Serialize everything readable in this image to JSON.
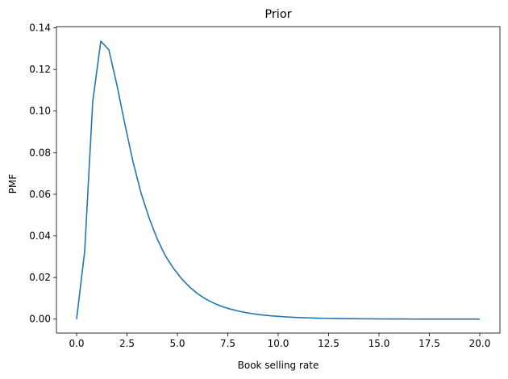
{
  "chart_data": {
    "type": "line",
    "title": "Prior",
    "xlabel": "Book selling rate",
    "ylabel": "PMF",
    "xlim": [
      -1,
      21
    ],
    "ylim": [
      -0.0067,
      0.1406
    ],
    "xticks": [
      0.0,
      2.5,
      5.0,
      7.5,
      10.0,
      12.5,
      15.0,
      17.5,
      20.0
    ],
    "xtick_labels": [
      "0.0",
      "2.5",
      "5.0",
      "7.5",
      "10.0",
      "12.5",
      "15.0",
      "17.5",
      "20.0"
    ],
    "yticks": [
      0.0,
      0.02,
      0.04,
      0.06,
      0.08,
      0.1,
      0.12,
      0.14
    ],
    "ytick_labels": [
      "0.00",
      "0.02",
      "0.04",
      "0.06",
      "0.08",
      "0.10",
      "0.12",
      "0.14"
    ],
    "grid": false,
    "legend": "none",
    "series": [
      {
        "color": "#1f77b4",
        "x": [
          0.0,
          0.4,
          0.8,
          1.2,
          1.6,
          2.0,
          2.4,
          2.8,
          3.2,
          3.6,
          4.0,
          4.4,
          4.8,
          5.2,
          5.6,
          6.0,
          6.4,
          6.8,
          7.2,
          7.6,
          8.0,
          8.4,
          8.8,
          9.2,
          9.6,
          10.0,
          10.4,
          10.8,
          11.2,
          11.6,
          12.0,
          12.4,
          12.8,
          13.2,
          13.6,
          14.0,
          14.4,
          14.8,
          15.2,
          15.6,
          16.0,
          16.4,
          16.8,
          17.2,
          17.6,
          18.0,
          18.4,
          18.8,
          19.2,
          19.6,
          20.0
        ],
        "y": [
          0.0,
          0.0325,
          0.1045,
          0.1336,
          0.1295,
          0.1125,
          0.0935,
          0.0755,
          0.0605,
          0.0485,
          0.0385,
          0.0305,
          0.0245,
          0.0195,
          0.0155,
          0.0122,
          0.0097,
          0.0077,
          0.0061,
          0.0049,
          0.0039,
          0.0031,
          0.0025,
          0.002,
          0.0016,
          0.0013,
          0.00105,
          0.00085,
          0.0007,
          0.00057,
          0.00046,
          0.00037,
          0.0003,
          0.00024,
          0.0002,
          0.00016,
          0.00013,
          0.0001,
          8e-05,
          7e-05,
          5e-05,
          4e-05,
          3e-05,
          3e-05,
          2e-05,
          2e-05,
          1e-05,
          1e-05,
          1e-05,
          1e-05,
          0.0
        ]
      }
    ]
  }
}
